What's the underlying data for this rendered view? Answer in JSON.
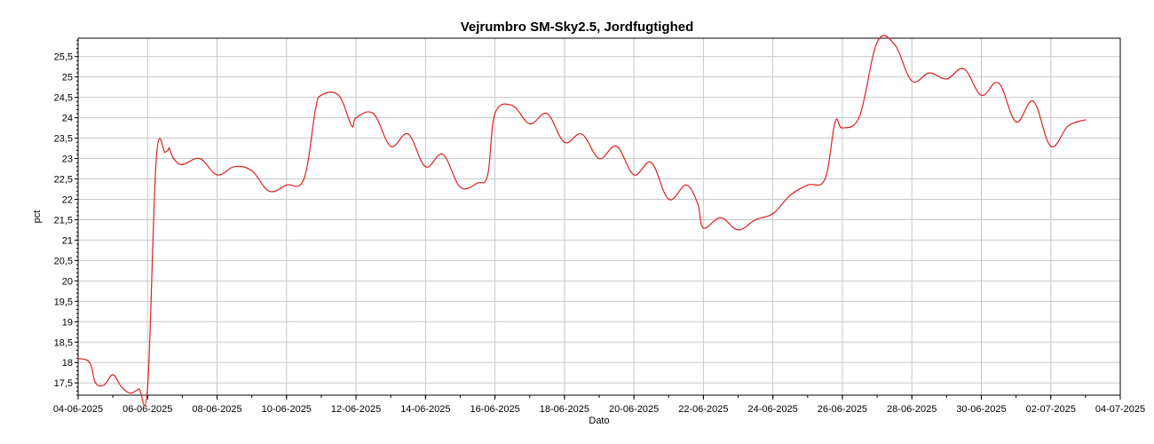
{
  "chart_data": {
    "type": "line",
    "title": "Vejrumbro SM-Sky2.5, Jordfugtighed",
    "xlabel": "Dato",
    "ylabel": "pct",
    "x_ticks": [
      "04-06-2025",
      "06-06-2025",
      "08-06-2025",
      "10-06-2025",
      "12-06-2025",
      "14-06-2025",
      "16-06-2025",
      "18-06-2025",
      "20-06-2025",
      "22-06-2025",
      "24-06-2025",
      "26-06-2025",
      "28-06-2025",
      "30-06-2025",
      "02-07-2025",
      "04-07-2025"
    ],
    "xlim": [
      "04-06-2025",
      "04-07-2025"
    ],
    "y_ticks": [
      "17,5",
      "18",
      "18,5",
      "19",
      "19,5",
      "20",
      "20,5",
      "21",
      "21,5",
      "22",
      "22,5",
      "23",
      "23,5",
      "24",
      "24,5",
      "25",
      "25,5"
    ],
    "y_tick_values": [
      17.5,
      18,
      18.5,
      19,
      19.5,
      20,
      20.5,
      21,
      21.5,
      22,
      22.5,
      23,
      23.5,
      24,
      24.5,
      25,
      25.5
    ],
    "ylim": [
      17.2,
      25.95
    ],
    "grid": true,
    "colors": {
      "line": "#dd2222",
      "grid": "#c8c8c8",
      "axis": "#000000"
    },
    "series": [
      {
        "x": [
          "04-06-2025 00:00",
          "04-06-2025 08:00",
          "04-06-2025 12:00",
          "04-06-2025 18:00",
          "05-06-2025 00:00",
          "05-06-2025 06:00",
          "05-06-2025 12:00",
          "05-06-2025 18:00",
          "06-06-2025 00:00",
          "06-06-2025 06:00",
          "06-06-2025 12:00",
          "06-06-2025 14:00",
          "06-06-2025 15:00",
          "06-06-2025 18:00",
          "07-06-2025 00:00",
          "07-06-2025 12:00",
          "08-06-2025 00:00",
          "08-06-2025 12:00",
          "09-06-2025 00:00",
          "09-06-2025 12:00",
          "10-06-2025 00:00",
          "10-06-2025 12:00",
          "10-06-2025 20:00",
          "11-06-2025 00:00",
          "11-06-2025 12:00",
          "11-06-2025 21:00",
          "12-06-2025 00:00",
          "12-06-2025 12:00",
          "13-06-2025 00:00",
          "13-06-2025 12:00",
          "14-06-2025 00:00",
          "14-06-2025 12:00",
          "15-06-2025 00:00",
          "15-06-2025 12:00",
          "15-06-2025 19:00",
          "16-06-2025 00:00",
          "16-06-2025 12:00",
          "17-06-2025 00:00",
          "17-06-2025 12:00",
          "18-06-2025 00:00",
          "18-06-2025 12:00",
          "19-06-2025 00:00",
          "19-06-2025 12:00",
          "20-06-2025 00:00",
          "20-06-2025 12:00",
          "21-06-2025 00:00",
          "21-06-2025 12:00",
          "21-06-2025 20:00",
          "22-06-2025 00:00",
          "22-06-2025 12:00",
          "23-06-2025 00:00",
          "23-06-2025 12:00",
          "24-06-2025 00:00",
          "24-06-2025 12:00",
          "25-06-2025 00:00",
          "25-06-2025 12:00",
          "25-06-2025 19:00",
          "26-06-2025 00:00",
          "26-06-2025 12:00",
          "27-06-2025 00:00",
          "27-06-2025 12:00",
          "28-06-2025 00:00",
          "28-06-2025 12:00",
          "29-06-2025 00:00",
          "29-06-2025 12:00",
          "30-06-2025 00:00",
          "30-06-2025 12:00",
          "01-07-2025 00:00",
          "01-07-2025 12:00",
          "02-07-2025 00:00",
          "02-07-2025 12:00",
          "03-07-2025 00:00"
        ],
        "values": [
          18.1,
          18.0,
          17.5,
          17.45,
          17.7,
          17.4,
          17.25,
          17.35,
          17.4,
          23.0,
          23.15,
          23.2,
          23.25,
          23.0,
          22.85,
          23.0,
          22.6,
          22.8,
          22.7,
          22.2,
          22.35,
          22.5,
          24.2,
          24.55,
          24.55,
          23.8,
          24.0,
          24.1,
          23.3,
          23.6,
          22.8,
          23.1,
          22.3,
          22.4,
          22.6,
          24.1,
          24.3,
          23.85,
          24.1,
          23.4,
          23.6,
          23.0,
          23.3,
          22.6,
          22.9,
          22.0,
          22.35,
          21.9,
          21.3,
          21.55,
          21.25,
          21.5,
          21.65,
          22.1,
          22.35,
          22.5,
          23.9,
          23.75,
          24.05,
          25.85,
          25.8,
          24.9,
          25.1,
          24.95,
          25.2,
          24.55,
          24.85,
          23.9,
          24.4,
          23.3,
          23.8,
          23.95
        ]
      }
    ]
  }
}
